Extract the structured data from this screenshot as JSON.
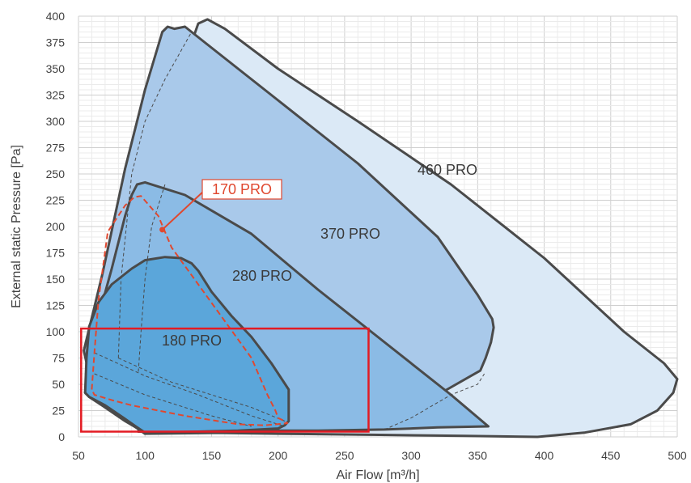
{
  "chart_data": {
    "type": "area",
    "title": "",
    "xlabel": "Air Flow [m³/h]",
    "ylabel": "External static Pressure [Pa]",
    "xlim": [
      50,
      500
    ],
    "ylim": [
      0,
      400
    ],
    "x_ticks": [
      50,
      100,
      150,
      200,
      250,
      300,
      350,
      400,
      450,
      500
    ],
    "y_ticks": [
      0,
      25,
      50,
      75,
      100,
      125,
      150,
      175,
      200,
      225,
      250,
      275,
      300,
      325,
      350,
      375,
      400
    ],
    "grid": "minor and major gridlines",
    "regions": [
      {
        "name": "460 PRO",
        "color": "#dbe9f6",
        "label_at": [
          553,
          216
        ],
        "boundary": [
          [
            95,
            5
          ],
          [
            108,
            120
          ],
          [
            123,
            280
          ],
          [
            135,
            375
          ],
          [
            140,
            393
          ],
          [
            147,
            397
          ],
          [
            160,
            388
          ],
          [
            200,
            350
          ],
          [
            260,
            300
          ],
          [
            330,
            240
          ],
          [
            400,
            170
          ],
          [
            460,
            100
          ],
          [
            490,
            70
          ],
          [
            500,
            55
          ],
          [
            497,
            42
          ],
          [
            485,
            25
          ],
          [
            465,
            12
          ],
          [
            430,
            4
          ],
          [
            395,
            0
          ],
          [
            340,
            1
          ],
          [
            270,
            2
          ],
          [
            200,
            3
          ],
          [
            140,
            4
          ],
          [
            95,
            5
          ]
        ]
      },
      {
        "name": "370 PRO",
        "color": "#a9c9ea",
        "label_at": [
          433,
          295
        ],
        "boundary": [
          [
            54,
            82
          ],
          [
            68,
            155
          ],
          [
            85,
            255
          ],
          [
            100,
            330
          ],
          [
            113,
            385
          ],
          [
            117,
            390
          ],
          [
            122,
            388
          ],
          [
            130,
            390
          ],
          [
            145,
            375
          ],
          [
            200,
            320
          ],
          [
            260,
            260
          ],
          [
            320,
            190
          ],
          [
            350,
            135
          ],
          [
            361,
            112
          ],
          [
            362,
            104
          ],
          [
            360,
            90
          ],
          [
            356,
            75
          ],
          [
            352,
            63
          ],
          [
            345,
            58
          ],
          [
            320,
            40
          ],
          [
            300,
            28
          ],
          [
            285,
            22
          ],
          [
            260,
            15
          ],
          [
            235,
            10
          ],
          [
            210,
            7
          ],
          [
            190,
            6
          ],
          [
            175,
            4
          ],
          [
            100,
            3
          ],
          [
            75,
            25
          ],
          [
            60,
            48
          ],
          [
            54,
            82
          ]
        ]
      },
      {
        "name": "280 PRO",
        "color": "#8bbbe5",
        "label_at": [
          324,
          347
        ],
        "boundary": [
          [
            55,
            42
          ],
          [
            62,
            100
          ],
          [
            75,
            160
          ],
          [
            85,
            210
          ],
          [
            90,
            230
          ],
          [
            94,
            240
          ],
          [
            100,
            242
          ],
          [
            130,
            230
          ],
          [
            180,
            193
          ],
          [
            230,
            140
          ],
          [
            270,
            100
          ],
          [
            300,
            70
          ],
          [
            330,
            40
          ],
          [
            358,
            10
          ],
          [
            320,
            9
          ],
          [
            280,
            7
          ],
          [
            230,
            6
          ],
          [
            200,
            6
          ],
          [
            170,
            5
          ],
          [
            120,
            4
          ],
          [
            100,
            4
          ],
          [
            85,
            15
          ],
          [
            70,
            28
          ],
          [
            58,
            38
          ],
          [
            55,
            42
          ]
        ]
      },
      {
        "name": "180 PRO",
        "color": "#5ba6da",
        "label_at": [
          237,
          427
        ],
        "boundary": [
          [
            55,
            42
          ],
          [
            56,
            75
          ],
          [
            58,
            105
          ],
          [
            65,
            128
          ],
          [
            75,
            145
          ],
          [
            90,
            160
          ],
          [
            100,
            168
          ],
          [
            115,
            171
          ],
          [
            127,
            170
          ],
          [
            135,
            165
          ],
          [
            140,
            158
          ],
          [
            150,
            138
          ],
          [
            165,
            115
          ],
          [
            180,
            95
          ],
          [
            195,
            70
          ],
          [
            208,
            45
          ],
          [
            208,
            15
          ],
          [
            205,
            11
          ],
          [
            200,
            8
          ],
          [
            170,
            6
          ],
          [
            140,
            5
          ],
          [
            100,
            4
          ],
          [
            93,
            10
          ],
          [
            84,
            18
          ],
          [
            70,
            30
          ],
          [
            58,
            38
          ],
          [
            55,
            42
          ]
        ]
      }
    ],
    "dashed_boundaries": [
      {
        "name": "170 PRO",
        "color": "#e0482f",
        "points": [
          [
            60,
            45
          ],
          [
            62,
            80
          ],
          [
            65,
            130
          ],
          [
            72,
            195
          ],
          [
            85,
            220
          ],
          [
            92,
            228
          ],
          [
            97,
            229
          ],
          [
            110,
            210
          ],
          [
            120,
            180
          ],
          [
            140,
            145
          ],
          [
            160,
            110
          ],
          [
            180,
            75
          ],
          [
            192,
            40
          ],
          [
            198,
            25
          ],
          [
            200,
            18
          ],
          [
            205,
            15
          ],
          [
            207,
            13
          ],
          [
            190,
            11
          ],
          [
            170,
            12
          ],
          [
            150,
            16
          ],
          [
            130,
            20
          ],
          [
            110,
            25
          ],
          [
            90,
            30
          ],
          [
            75,
            35
          ],
          [
            62,
            40
          ],
          [
            60,
            45
          ]
        ]
      }
    ],
    "dashed_internal_lines": [
      [
        [
          62,
          80
        ],
        [
          100,
          58
        ],
        [
          140,
          40
        ],
        [
          180,
          20
        ],
        [
          205,
          10
        ]
      ],
      [
        [
          80,
          75
        ],
        [
          120,
          52
        ],
        [
          180,
          28
        ],
        [
          205,
          15
        ]
      ],
      [
        [
          62,
          60
        ],
        [
          100,
          40
        ],
        [
          150,
          20
        ],
        [
          180,
          10
        ]
      ],
      [
        [
          80,
          75
        ],
        [
          82,
          150
        ],
        [
          90,
          250
        ],
        [
          100,
          300
        ],
        [
          115,
          340
        ],
        [
          135,
          385
        ]
      ],
      [
        [
          95,
          62
        ],
        [
          97,
          100
        ],
        [
          100,
          150
        ],
        [
          105,
          200
        ],
        [
          115,
          240
        ]
      ],
      [
        [
          280,
          7
        ],
        [
          300,
          18
        ],
        [
          330,
          40
        ],
        [
          350,
          50
        ],
        [
          355,
          60
        ]
      ]
    ],
    "callout": {
      "text": "170 PRO",
      "color": "#e0482f",
      "marker": [
        113,
        197
      ]
    },
    "highlight_box": {
      "color": "#e31b23",
      "x_range": [
        52,
        268
      ],
      "y_range": [
        5,
        103
      ]
    }
  }
}
